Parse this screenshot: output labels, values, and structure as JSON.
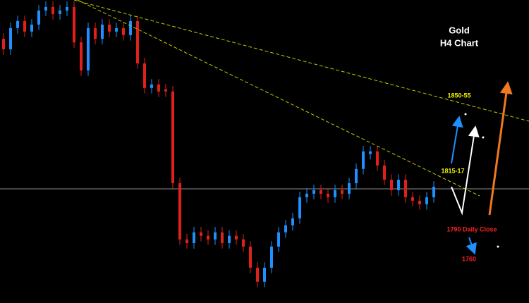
{
  "chart_data": {
    "type": "candlestick",
    "title": "Gold",
    "subtitle": "H4 Chart",
    "annotations": [
      "1850-55",
      "1815-17",
      "1790 Daily Close",
      "1760"
    ],
    "ylim": [
      1754.6,
      1892.7
    ],
    "up_color": "#1e90ff",
    "down_color": "#e0201a",
    "open": [
      1875.0,
      1870.2,
      1879.9,
      1883.1,
      1878.3,
      1881.5,
      1887.9,
      1889.5,
      1886.3,
      1887.9,
      1889.5,
      1873.4,
      1860.6,
      1879.9,
      1875.0,
      1881.5,
      1878.3,
      1879.9,
      1876.7,
      1883.1,
      1863.8,
      1852.6,
      1854.2,
      1852.0,
      1851.0,
      1809.2,
      1783.6,
      1781.9,
      1786.8,
      1785.2,
      1783.6,
      1786.8,
      1781.9,
      1785.2,
      1783.6,
      1780.3,
      1770.7,
      1764.3,
      1770.7,
      1780.3,
      1786.8,
      1790.0,
      1793.2,
      1802.8,
      1804.4,
      1806.0,
      1804.4,
      1802.8,
      1806.0,
      1804.4,
      1809.2,
      1815.7,
      1822.5,
      1823.7,
      1817.3,
      1810.8,
      1806.0,
      1810.8,
      1802.8,
      1801.2,
      1799.6,
      1802.8
    ],
    "high": [
      1877.5,
      1882.4,
      1885.6,
      1885.6,
      1884.0,
      1890.4,
      1892.0,
      1892.0,
      1890.4,
      1892.0,
      1892.0,
      1875.9,
      1882.4,
      1882.4,
      1884.0,
      1884.0,
      1882.4,
      1882.4,
      1885.6,
      1885.6,
      1866.3,
      1856.7,
      1856.7,
      1854.5,
      1853.5,
      1811.7,
      1786.1,
      1789.3,
      1789.3,
      1787.7,
      1789.3,
      1789.3,
      1787.7,
      1787.7,
      1786.1,
      1782.8,
      1773.2,
      1773.2,
      1782.8,
      1789.3,
      1792.5,
      1795.7,
      1805.3,
      1806.9,
      1808.5,
      1808.5,
      1806.9,
      1808.5,
      1808.5,
      1811.7,
      1818.2,
      1826.2,
      1826.2,
      1826.2,
      1819.8,
      1813.3,
      1813.3,
      1813.3,
      1805.3,
      1803.7,
      1805.3,
      1810.1
    ],
    "low": [
      1867.7,
      1867.7,
      1877.4,
      1875.8,
      1875.8,
      1879.0,
      1885.4,
      1883.8,
      1883.8,
      1885.4,
      1870.9,
      1858.1,
      1858.1,
      1872.5,
      1872.5,
      1875.8,
      1875.8,
      1874.2,
      1874.2,
      1861.3,
      1850.1,
      1850.1,
      1848.5,
      1848.5,
      1806.7,
      1781.1,
      1779.4,
      1779.4,
      1782.7,
      1781.1,
      1781.1,
      1779.4,
      1779.4,
      1781.1,
      1777.8,
      1768.2,
      1761.8,
      1761.8,
      1768.2,
      1777.8,
      1784.3,
      1787.5,
      1790.7,
      1800.3,
      1801.9,
      1801.9,
      1800.3,
      1800.3,
      1801.9,
      1801.9,
      1806.7,
      1813.2,
      1820.0,
      1814.8,
      1808.3,
      1803.5,
      1803.5,
      1800.3,
      1798.7,
      1797.1,
      1797.1,
      1800.3
    ],
    "close": [
      1870.2,
      1879.9,
      1883.1,
      1878.3,
      1881.5,
      1887.9,
      1889.5,
      1886.3,
      1887.9,
      1889.5,
      1873.4,
      1860.6,
      1879.9,
      1875.0,
      1881.5,
      1878.3,
      1879.9,
      1876.7,
      1883.1,
      1863.8,
      1852.6,
      1854.2,
      1851.0,
      1851.0,
      1809.2,
      1783.6,
      1781.9,
      1786.8,
      1785.2,
      1783.6,
      1786.8,
      1781.9,
      1785.2,
      1783.6,
      1780.3,
      1770.7,
      1764.3,
      1770.7,
      1780.3,
      1786.8,
      1790.0,
      1793.2,
      1802.8,
      1804.4,
      1806.0,
      1804.4,
      1802.8,
      1806.0,
      1804.4,
      1809.2,
      1815.7,
      1823.7,
      1823.7,
      1817.3,
      1810.8,
      1806.0,
      1810.8,
      1802.8,
      1801.2,
      1799.6,
      1802.8,
      1807.6
    ]
  }
}
